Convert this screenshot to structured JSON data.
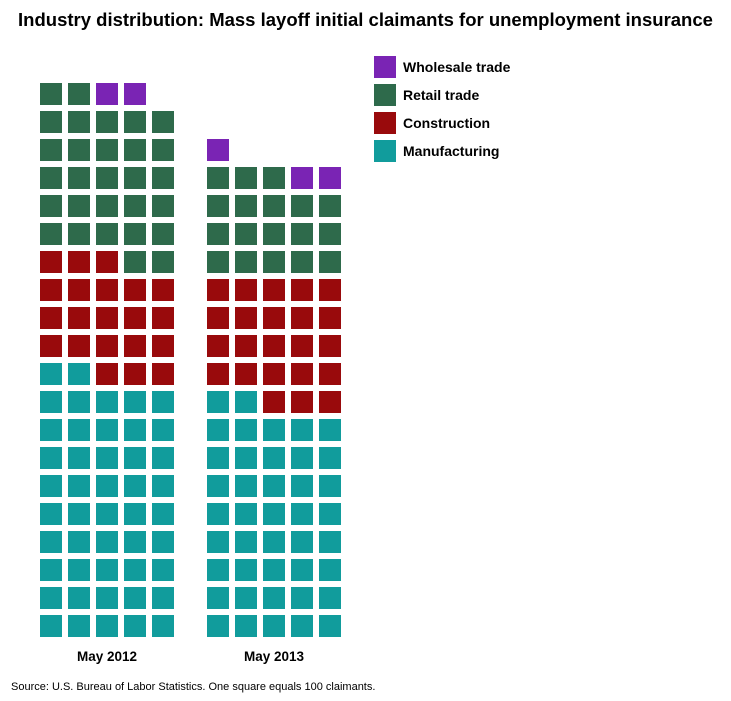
{
  "chart_data": {
    "type": "waffle",
    "title": "Industry distribution: Mass layoff initial claimants for unemployment insurance",
    "unit_note": "One square equals 100 claimants.",
    "categories": [
      "May 2012",
      "May 2013"
    ],
    "series": [
      {
        "name": "Manufacturing",
        "color": "#119c9c",
        "values": [
          47,
          42
        ]
      },
      {
        "name": "Construction",
        "color": "#990a0c",
        "values": [
          21,
          23
        ]
      },
      {
        "name": "Retail trade",
        "color": "#2e6a4b",
        "values": [
          29,
          18
        ]
      },
      {
        "name": "Wholesale trade",
        "color": "#7a24b4",
        "values": [
          2,
          3
        ]
      }
    ],
    "legend": {
      "position": "top-right",
      "order": [
        "Wholesale trade",
        "Retail trade",
        "Construction",
        "Manufacturing"
      ]
    },
    "grid": false
  },
  "source": "Source: U.S. Bureau of Labor Statistics. One square equals 100 claimants."
}
